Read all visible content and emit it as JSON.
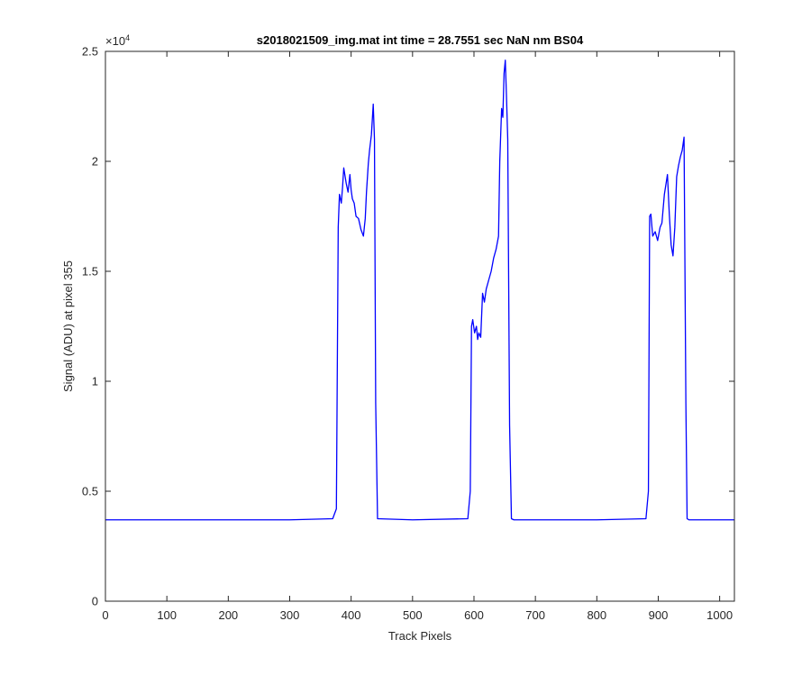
{
  "chart_data": {
    "type": "line",
    "title": "s2018021509_img.mat int time = 28.7551 sec  NaN nm BS04",
    "xlabel": "Track Pixels",
    "ylabel": "Signal (ADU) at pixel 355",
    "xlim": [
      0,
      1024
    ],
    "ylim": [
      0,
      25000
    ],
    "x_ticks": [
      0,
      100,
      200,
      300,
      400,
      500,
      600,
      700,
      800,
      900,
      1000
    ],
    "x_tick_labels": [
      "0",
      "100",
      "200",
      "300",
      "400",
      "500",
      "600",
      "700",
      "800",
      "900",
      "1000"
    ],
    "y_ticks": [
      0,
      5000,
      10000,
      15000,
      20000,
      25000
    ],
    "y_tick_labels": [
      "0",
      "0.5",
      "1",
      "1.5",
      "2",
      "2.5"
    ],
    "y_exponent_label": "×10",
    "y_exponent_power": "4",
    "grid": false,
    "series": [
      {
        "color": "#0000ff",
        "x": [
          0,
          100,
          200,
          300,
          370,
          376,
          379,
          381,
          384,
          386,
          388,
          392,
          395,
          398,
          400,
          402,
          405,
          408,
          412,
          416,
          420,
          423,
          425,
          428,
          430,
          433,
          436,
          438,
          440,
          443,
          500,
          590,
          594,
          596,
          598,
          601,
          604,
          606,
          608,
          611,
          614,
          617,
          620,
          624,
          628,
          632,
          636,
          640,
          642,
          645,
          647,
          649,
          651,
          653,
          655,
          658,
          661,
          665,
          700,
          800,
          880,
          884,
          886,
          888,
          891,
          895,
          899,
          903,
          906,
          910,
          915,
          918,
          921,
          924,
          927,
          930,
          933,
          936,
          939,
          942,
          945,
          947,
          950,
          954,
          1000,
          1024
        ],
        "y": [
          3700,
          3700,
          3700,
          3700,
          3750,
          4200,
          17000,
          18500,
          18100,
          18800,
          19700,
          19000,
          18600,
          19400,
          18700,
          18300,
          18100,
          17500,
          17400,
          16900,
          16600,
          17400,
          18600,
          19900,
          20500,
          21200,
          22600,
          21000,
          9000,
          3750,
          3700,
          3750,
          5000,
          12500,
          12800,
          12200,
          12500,
          11900,
          12200,
          12000,
          14000,
          13600,
          14200,
          14600,
          15000,
          15600,
          16000,
          16600,
          20000,
          22400,
          22000,
          24000,
          24600,
          22900,
          21000,
          8000,
          3750,
          3700,
          3700,
          3700,
          3750,
          5000,
          17500,
          17600,
          16600,
          16800,
          16400,
          17000,
          17200,
          18500,
          19400,
          17600,
          16200,
          15700,
          17000,
          19300,
          19800,
          20200,
          20500,
          21100,
          9000,
          3750,
          3700,
          3700,
          3700,
          3700
        ]
      }
    ]
  }
}
